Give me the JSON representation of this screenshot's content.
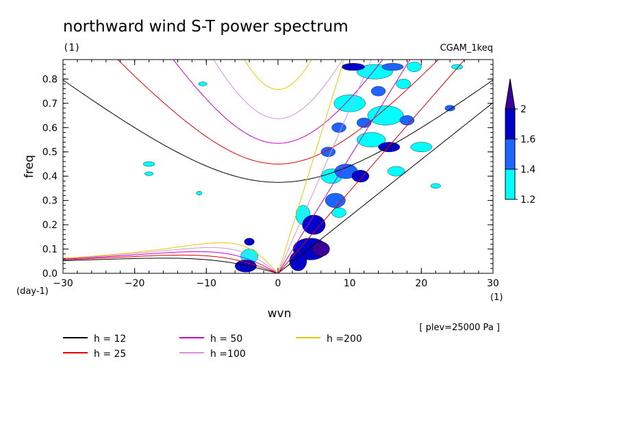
{
  "chart_data": {
    "type": "contour",
    "title": "northward wind S-T power spectrum",
    "subtitle_left": "(1)",
    "subtitle_right": "CGAM_1keq",
    "xlabel": "wvn",
    "ylabel": "freq",
    "x_unit": "(1)",
    "y_unit": "(day-1)",
    "annotation": "[ plev=25000 Pa ]",
    "xlim": [
      -30,
      30
    ],
    "ylim": [
      0,
      0.88
    ],
    "x_ticks": [
      -30,
      -20,
      -10,
      0,
      10,
      20,
      30
    ],
    "x_tick_labels": [
      "-30",
      "-20",
      "-10",
      "0",
      "10",
      "20",
      "30"
    ],
    "y_ticks": [
      0,
      0.1,
      0.2,
      0.3,
      0.4,
      0.5,
      0.6,
      0.7,
      0.8
    ],
    "y_tick_labels": [
      "0.0",
      "0.1",
      "0.2",
      "0.3",
      "0.4",
      "0.5",
      "0.6",
      "0.7",
      "0.8"
    ],
    "colorbar": {
      "levels": [
        1.2,
        1.4,
        1.6,
        2
      ],
      "level_labels": [
        "1.2",
        "1.4",
        "1.6",
        "2"
      ],
      "colors": [
        "#00ffff",
        "#1e64ff",
        "#0000c8",
        "#3c0096"
      ]
    },
    "dispersion_curves": [
      {
        "name": "h = 12",
        "h": 12,
        "color": "#000000"
      },
      {
        "name": "h = 25",
        "h": 25,
        "color": "#e00000"
      },
      {
        "name": "h = 50",
        "h": 50,
        "color": "#c800c8"
      },
      {
        "name": "h =100",
        "h": 100,
        "color": "#d890d8"
      },
      {
        "name": "h =200",
        "h": 200,
        "color": "#e6c800"
      }
    ],
    "power_patches": [
      {
        "x": 4.5,
        "y": 0.1,
        "rx": 2.4,
        "ry": 0.045,
        "level": 3
      },
      {
        "x": 5.0,
        "y": 0.2,
        "rx": 1.6,
        "ry": 0.04,
        "level": 3
      },
      {
        "x": 6.0,
        "y": 0.1,
        "rx": 1.2,
        "ry": 0.03,
        "level": 4
      },
      {
        "x": 2.8,
        "y": 0.05,
        "rx": 1.2,
        "ry": 0.04,
        "level": 3
      },
      {
        "x": -4.5,
        "y": 0.03,
        "rx": 1.5,
        "ry": 0.025,
        "level": 3
      },
      {
        "x": -4.0,
        "y": 0.13,
        "rx": 0.7,
        "ry": 0.015,
        "level": 3
      },
      {
        "x": 8.0,
        "y": 0.3,
        "rx": 1.4,
        "ry": 0.03,
        "level": 2
      },
      {
        "x": 9.5,
        "y": 0.42,
        "rx": 1.6,
        "ry": 0.03,
        "level": 2
      },
      {
        "x": 8.5,
        "y": 0.6,
        "rx": 1.0,
        "ry": 0.02,
        "level": 2
      },
      {
        "x": 11.5,
        "y": 0.4,
        "rx": 1.2,
        "ry": 0.025,
        "level": 3
      },
      {
        "x": 12.0,
        "y": 0.62,
        "rx": 1.0,
        "ry": 0.02,
        "level": 2
      },
      {
        "x": 10.5,
        "y": 0.85,
        "rx": 1.6,
        "ry": 0.015,
        "level": 3
      },
      {
        "x": 15.5,
        "y": 0.52,
        "rx": 1.5,
        "ry": 0.02,
        "level": 3
      },
      {
        "x": 14.0,
        "y": 0.75,
        "rx": 1.0,
        "ry": 0.02,
        "level": 2
      },
      {
        "x": 16.0,
        "y": 0.85,
        "rx": 1.5,
        "ry": 0.015,
        "level": 2
      },
      {
        "x": 18.0,
        "y": 0.63,
        "rx": 1.0,
        "ry": 0.02,
        "level": 2
      },
      {
        "x": 13.0,
        "y": 0.55,
        "rx": 2.0,
        "ry": 0.03,
        "level": 1
      },
      {
        "x": 10.0,
        "y": 0.7,
        "rx": 2.2,
        "ry": 0.035,
        "level": 1
      },
      {
        "x": 15.0,
        "y": 0.65,
        "rx": 2.5,
        "ry": 0.04,
        "level": 1
      },
      {
        "x": 13.5,
        "y": 0.83,
        "rx": 2.5,
        "ry": 0.03,
        "level": 1
      },
      {
        "x": 20.0,
        "y": 0.52,
        "rx": 1.5,
        "ry": 0.02,
        "level": 1
      },
      {
        "x": 19.0,
        "y": 0.85,
        "rx": 1.0,
        "ry": 0.02,
        "level": 1
      },
      {
        "x": 24.0,
        "y": 0.68,
        "rx": 0.7,
        "ry": 0.012,
        "level": 2
      },
      {
        "x": 25.0,
        "y": 0.85,
        "rx": 0.8,
        "ry": 0.01,
        "level": 1
      },
      {
        "x": 16.5,
        "y": 0.42,
        "rx": 1.2,
        "ry": 0.02,
        "level": 1
      },
      {
        "x": 7.5,
        "y": 0.4,
        "rx": 1.5,
        "ry": 0.03,
        "level": 1
      },
      {
        "x": 7.0,
        "y": 0.5,
        "rx": 1.0,
        "ry": 0.02,
        "level": 2
      },
      {
        "x": 3.5,
        "y": 0.24,
        "rx": 1.0,
        "ry": 0.04,
        "level": 1
      },
      {
        "x": -18.0,
        "y": 0.45,
        "rx": 0.8,
        "ry": 0.01,
        "level": 1
      },
      {
        "x": -18.0,
        "y": 0.41,
        "rx": 0.6,
        "ry": 0.008,
        "level": 1
      },
      {
        "x": -10.5,
        "y": 0.78,
        "rx": 0.6,
        "ry": 0.008,
        "level": 1
      },
      {
        "x": -4.0,
        "y": 0.07,
        "rx": 1.2,
        "ry": 0.03,
        "level": 1
      },
      {
        "x": 8.5,
        "y": 0.25,
        "rx": 1.0,
        "ry": 0.02,
        "level": 1
      },
      {
        "x": 17.5,
        "y": 0.78,
        "rx": 1.0,
        "ry": 0.02,
        "level": 1
      },
      {
        "x": 22.0,
        "y": 0.36,
        "rx": 0.7,
        "ry": 0.01,
        "level": 1
      },
      {
        "x": -11.0,
        "y": 0.33,
        "rx": 0.4,
        "ry": 0.008,
        "level": 1
      }
    ]
  }
}
